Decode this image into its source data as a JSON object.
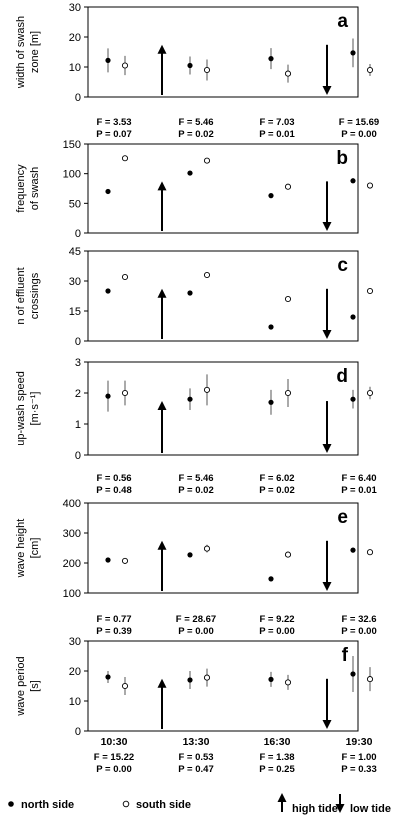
{
  "times": [
    "10:30",
    "13:30",
    "16:30",
    "19:30"
  ],
  "tide_arrows": [
    {
      "position": "between-10:30-13:30",
      "direction": "up"
    },
    {
      "position": "between-16:30-19:30",
      "direction": "down"
    }
  ],
  "legend": {
    "north": "north side",
    "south": "south side",
    "high_tide": "high tide",
    "low_tide": "low tide"
  },
  "chart_data": [
    {
      "type": "scatter",
      "panel_label": "a",
      "ylabel": [
        "width of swash",
        "zone [m]"
      ],
      "ylim": [
        0,
        30
      ],
      "yticks": [
        0,
        10,
        20,
        30
      ],
      "categories": [
        "10:30",
        "13:30",
        "16:30",
        "19:30"
      ],
      "series": [
        {
          "name": "north side",
          "values": [
            12.2,
            10.5,
            12.8,
            14.7
          ],
          "errors": [
            4.0,
            3.0,
            3.5,
            4.8
          ]
        },
        {
          "name": "south side",
          "values": [
            10.5,
            9.0,
            7.8,
            9.0
          ],
          "errors": [
            3.2,
            3.5,
            3.0,
            2.0
          ]
        }
      ],
      "stats": [
        {
          "F": "F = 3.53",
          "P": "P = 0.07"
        },
        {
          "F": "F = 5.46",
          "P": "P = 0.02"
        },
        {
          "F": "F = 7.03",
          "P": "P = 0.01"
        },
        {
          "F": "F = 15.69",
          "P": "P = 0.00"
        }
      ]
    },
    {
      "type": "scatter",
      "panel_label": "b",
      "ylabel": [
        "frequency",
        "of swash"
      ],
      "ylim": [
        0,
        150
      ],
      "yticks": [
        0,
        50,
        100,
        150
      ],
      "categories": [
        "10:30",
        "13:30",
        "16:30",
        "19:30"
      ],
      "series": [
        {
          "name": "north side",
          "values": [
            70,
            101,
            63,
            88
          ],
          "errors": [
            0,
            0,
            0,
            0
          ]
        },
        {
          "name": "south side",
          "values": [
            126,
            122,
            78,
            80
          ],
          "errors": [
            0,
            0,
            0,
            0
          ]
        }
      ],
      "stats": []
    },
    {
      "type": "scatter",
      "panel_label": "c",
      "ylabel": [
        "n of effluent",
        "crossings"
      ],
      "ylim": [
        0,
        45
      ],
      "yticks": [
        0,
        15,
        30,
        45
      ],
      "categories": [
        "10:30",
        "13:30",
        "16:30",
        "19:30"
      ],
      "series": [
        {
          "name": "north side",
          "values": [
            25,
            24,
            7,
            12
          ],
          "errors": [
            0,
            0,
            0,
            0
          ]
        },
        {
          "name": "south side",
          "values": [
            32,
            33,
            21,
            25
          ],
          "errors": [
            0,
            0,
            0,
            0
          ]
        }
      ],
      "stats": []
    },
    {
      "type": "scatter",
      "panel_label": "d",
      "ylabel": [
        "up-wash speed",
        "[m·s⁻¹]"
      ],
      "ylim": [
        0,
        3
      ],
      "yticks": [
        0,
        1,
        2,
        3
      ],
      "categories": [
        "10:30",
        "13:30",
        "16:30",
        "19:30"
      ],
      "series": [
        {
          "name": "north side",
          "values": [
            1.9,
            1.8,
            1.7,
            1.8
          ],
          "errors": [
            0.5,
            0.35,
            0.4,
            0.3
          ]
        },
        {
          "name": "south side",
          "values": [
            2.0,
            2.1,
            2.0,
            2.0
          ],
          "errors": [
            0.4,
            0.5,
            0.45,
            0.2
          ]
        }
      ],
      "stats": [
        {
          "F": "F = 0.56",
          "P": "P = 0.48"
        },
        {
          "F": "F = 5.46",
          "P": "P = 0.02"
        },
        {
          "F": "F = 6.02",
          "P": "P = 0.02"
        },
        {
          "F": "F = 6.40",
          "P": "P = 0.01"
        }
      ]
    },
    {
      "type": "scatter",
      "panel_label": "e",
      "ylabel": [
        "wave height",
        "[cm]"
      ],
      "ylim": [
        100,
        400
      ],
      "yticks": [
        100,
        200,
        300,
        400
      ],
      "categories": [
        "10:30",
        "13:30",
        "16:30",
        "19:30"
      ],
      "series": [
        {
          "name": "north side",
          "values": [
            210,
            227,
            147,
            243
          ],
          "errors": [
            8,
            0,
            0,
            0
          ]
        },
        {
          "name": "south side",
          "values": [
            207,
            248,
            228,
            236
          ],
          "errors": [
            8,
            13,
            0,
            0
          ]
        }
      ],
      "stats": [
        {
          "F": "F = 0.77",
          "P": "P = 0.39"
        },
        {
          "F": "F = 28.67",
          "P": "P = 0.00"
        },
        {
          "F": "F = 9.22",
          "P": "P = 0.00"
        },
        {
          "F": "F = 32.6",
          "P": "P = 0.00"
        }
      ]
    },
    {
      "type": "scatter",
      "panel_label": "f",
      "ylabel": [
        "wave period",
        "[s]"
      ],
      "ylim": [
        0,
        30
      ],
      "yticks": [
        0,
        10,
        20,
        30
      ],
      "categories": [
        "10:30",
        "13:30",
        "16:30",
        "19:30"
      ],
      "series": [
        {
          "name": "north side",
          "values": [
            18,
            17,
            17.2,
            19
          ],
          "errors": [
            2.0,
            3.0,
            2.5,
            6.0
          ]
        },
        {
          "name": "south side",
          "values": [
            15,
            17.8,
            16.2,
            17.3
          ],
          "errors": [
            3.0,
            3.0,
            2.5,
            4.0
          ]
        }
      ],
      "stats": [
        {
          "F": "F = 15.22",
          "P": "P = 0.00"
        },
        {
          "F": "F = 0.53",
          "P": "P = 0.47"
        },
        {
          "F": "F = 1.38",
          "P": "P = 0.25"
        },
        {
          "F": "F = 1.00",
          "P": "P = 0.33"
        }
      ]
    }
  ]
}
